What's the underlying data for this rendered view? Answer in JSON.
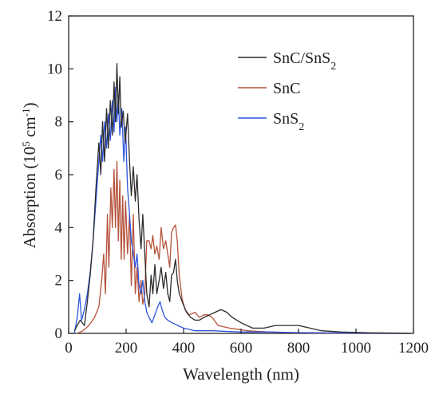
{
  "chart_data": {
    "type": "line",
    "xlabel": "Wavelength (nm)",
    "ylabel": {
      "main": "Absorption (10",
      "exp1": "5",
      "mid": " cm",
      "exp2": "-1",
      "end": ")"
    },
    "xlim": [
      0,
      1200
    ],
    "ylim": [
      0,
      12
    ],
    "xticks": [
      "0",
      "200",
      "400",
      "600",
      "800",
      "1000",
      "1200"
    ],
    "yticks": [
      "0",
      "2",
      "4",
      "6",
      "8",
      "10",
      "12"
    ],
    "grid": false,
    "legend_position": "top-right",
    "series": [
      {
        "name": "SnC/SnS2",
        "label": {
          "base": "SnC/SnS",
          "sub": "2"
        },
        "color": "#2b2b2b",
        "points": [
          [
            20,
            0.1
          ],
          [
            40,
            0.5
          ],
          [
            55,
            0.3
          ],
          [
            65,
            1.2
          ],
          [
            75,
            2.2
          ],
          [
            85,
            3.5
          ],
          [
            95,
            5.5
          ],
          [
            105,
            7.2
          ],
          [
            112,
            6.0
          ],
          [
            118,
            8.0
          ],
          [
            125,
            6.5
          ],
          [
            132,
            8.5
          ],
          [
            138,
            7.0
          ],
          [
            145,
            8.8
          ],
          [
            152,
            7.5
          ],
          [
            158,
            9.5
          ],
          [
            163,
            8.0
          ],
          [
            168,
            10.2
          ],
          [
            173,
            8.3
          ],
          [
            178,
            9.7
          ],
          [
            183,
            7.8
          ],
          [
            190,
            8.4
          ],
          [
            197,
            7.2
          ],
          [
            205,
            8.3
          ],
          [
            212,
            6.5
          ],
          [
            218,
            5.2
          ],
          [
            225,
            6.3
          ],
          [
            232,
            5.0
          ],
          [
            238,
            6.0
          ],
          [
            245,
            4.3
          ],
          [
            252,
            3.2
          ],
          [
            258,
            4.5
          ],
          [
            265,
            3.0
          ],
          [
            272,
            1.5
          ],
          [
            280,
            1.0
          ],
          [
            287,
            2.2
          ],
          [
            293,
            1.5
          ],
          [
            300,
            2.6
          ],
          [
            307,
            1.5
          ],
          [
            315,
            2.0
          ],
          [
            322,
            2.5
          ],
          [
            330,
            1.7
          ],
          [
            338,
            2.3
          ],
          [
            345,
            1.5
          ],
          [
            352,
            1.2
          ],
          [
            358,
            2.2
          ],
          [
            365,
            2.3
          ],
          [
            372,
            2.8
          ],
          [
            378,
            2.0
          ],
          [
            385,
            1.5
          ],
          [
            395,
            1.2
          ],
          [
            410,
            0.8
          ],
          [
            425,
            0.6
          ],
          [
            440,
            0.5
          ],
          [
            455,
            0.5
          ],
          [
            470,
            0.6
          ],
          [
            490,
            0.7
          ],
          [
            510,
            0.8
          ],
          [
            530,
            0.9
          ],
          [
            550,
            0.8
          ],
          [
            570,
            0.6
          ],
          [
            600,
            0.4
          ],
          [
            640,
            0.2
          ],
          [
            680,
            0.2
          ],
          [
            720,
            0.3
          ],
          [
            760,
            0.3
          ],
          [
            800,
            0.3
          ],
          [
            840,
            0.2
          ],
          [
            880,
            0.1
          ],
          [
            950,
            0.05
          ],
          [
            1050,
            0.02
          ],
          [
            1150,
            0.01
          ],
          [
            1190,
            0.0
          ]
        ]
      },
      {
        "name": "SnC",
        "label": {
          "base": "SnC",
          "sub": ""
        },
        "color": "#b5523b",
        "points": [
          [
            30,
            0.0
          ],
          [
            50,
            0.1
          ],
          [
            70,
            0.3
          ],
          [
            90,
            0.6
          ],
          [
            105,
            1.0
          ],
          [
            115,
            2.0
          ],
          [
            122,
            3.0
          ],
          [
            128,
            1.5
          ],
          [
            135,
            4.5
          ],
          [
            140,
            2.5
          ],
          [
            147,
            5.5
          ],
          [
            152,
            4.0
          ],
          [
            158,
            6.2
          ],
          [
            163,
            4.0
          ],
          [
            168,
            6.5
          ],
          [
            173,
            3.5
          ],
          [
            178,
            5.8
          ],
          [
            183,
            2.8
          ],
          [
            188,
            5.2
          ],
          [
            193,
            2.8
          ],
          [
            198,
            5.0
          ],
          [
            205,
            3.0
          ],
          [
            212,
            4.5
          ],
          [
            218,
            1.8
          ],
          [
            225,
            4.5
          ],
          [
            232,
            1.5
          ],
          [
            238,
            2.5
          ],
          [
            245,
            1.2
          ],
          [
            252,
            2.0
          ],
          [
            258,
            1.1
          ],
          [
            265,
            1.5
          ],
          [
            272,
            3.5
          ],
          [
            280,
            3.5
          ],
          [
            287,
            3.2
          ],
          [
            293,
            3.7
          ],
          [
            300,
            3.0
          ],
          [
            307,
            3.3
          ],
          [
            315,
            2.8
          ],
          [
            322,
            4.0
          ],
          [
            330,
            3.2
          ],
          [
            338,
            3.5
          ],
          [
            345,
            3.0
          ],
          [
            352,
            2.5
          ],
          [
            358,
            3.8
          ],
          [
            365,
            4.0
          ],
          [
            372,
            4.1
          ],
          [
            378,
            3.5
          ],
          [
            385,
            2.2
          ],
          [
            395,
            1.3
          ],
          [
            405,
            0.9
          ],
          [
            420,
            0.7
          ],
          [
            440,
            0.8
          ],
          [
            455,
            0.6
          ],
          [
            470,
            0.7
          ],
          [
            485,
            0.7
          ],
          [
            500,
            0.6
          ],
          [
            520,
            0.3
          ],
          [
            560,
            0.2
          ],
          [
            620,
            0.1
          ],
          [
            700,
            0.05
          ],
          [
            800,
            0.02
          ],
          [
            900,
            0.01
          ],
          [
            1000,
            0.0
          ],
          [
            1190,
            0.0
          ]
        ]
      },
      {
        "name": "SnS2",
        "label": {
          "base": "SnS",
          "sub": "2"
        },
        "color": "#2f56e0",
        "points": [
          [
            20,
            0.0
          ],
          [
            30,
            0.6
          ],
          [
            38,
            1.5
          ],
          [
            45,
            0.5
          ],
          [
            55,
            0.9
          ],
          [
            65,
            1.5
          ],
          [
            75,
            2.3
          ],
          [
            85,
            3.5
          ],
          [
            95,
            5.0
          ],
          [
            105,
            6.5
          ],
          [
            112,
            7.5
          ],
          [
            118,
            6.5
          ],
          [
            125,
            8.0
          ],
          [
            132,
            7.0
          ],
          [
            138,
            8.3
          ],
          [
            145,
            7.3
          ],
          [
            152,
            8.8
          ],
          [
            158,
            7.6
          ],
          [
            163,
            9.3
          ],
          [
            168,
            8.0
          ],
          [
            173,
            9.0
          ],
          [
            178,
            7.5
          ],
          [
            185,
            8.5
          ],
          [
            192,
            6.5
          ],
          [
            198,
            7.8
          ],
          [
            205,
            5.5
          ],
          [
            212,
            4.5
          ],
          [
            218,
            3.5
          ],
          [
            225,
            3.0
          ],
          [
            232,
            2.5
          ],
          [
            238,
            3.0
          ],
          [
            245,
            1.8
          ],
          [
            252,
            1.5
          ],
          [
            258,
            2.0
          ],
          [
            265,
            1.2
          ],
          [
            272,
            0.8
          ],
          [
            280,
            0.6
          ],
          [
            290,
            0.4
          ],
          [
            300,
            0.7
          ],
          [
            310,
            1.0
          ],
          [
            318,
            1.2
          ],
          [
            325,
            0.9
          ],
          [
            335,
            0.6
          ],
          [
            345,
            0.5
          ],
          [
            360,
            0.4
          ],
          [
            380,
            0.3
          ],
          [
            400,
            0.2
          ],
          [
            440,
            0.1
          ],
          [
            500,
            0.1
          ],
          [
            600,
            0.05
          ],
          [
            700,
            0.05
          ],
          [
            800,
            0.03
          ],
          [
            900,
            0.02
          ],
          [
            1000,
            0.01
          ],
          [
            1190,
            0.0
          ]
        ]
      }
    ]
  }
}
